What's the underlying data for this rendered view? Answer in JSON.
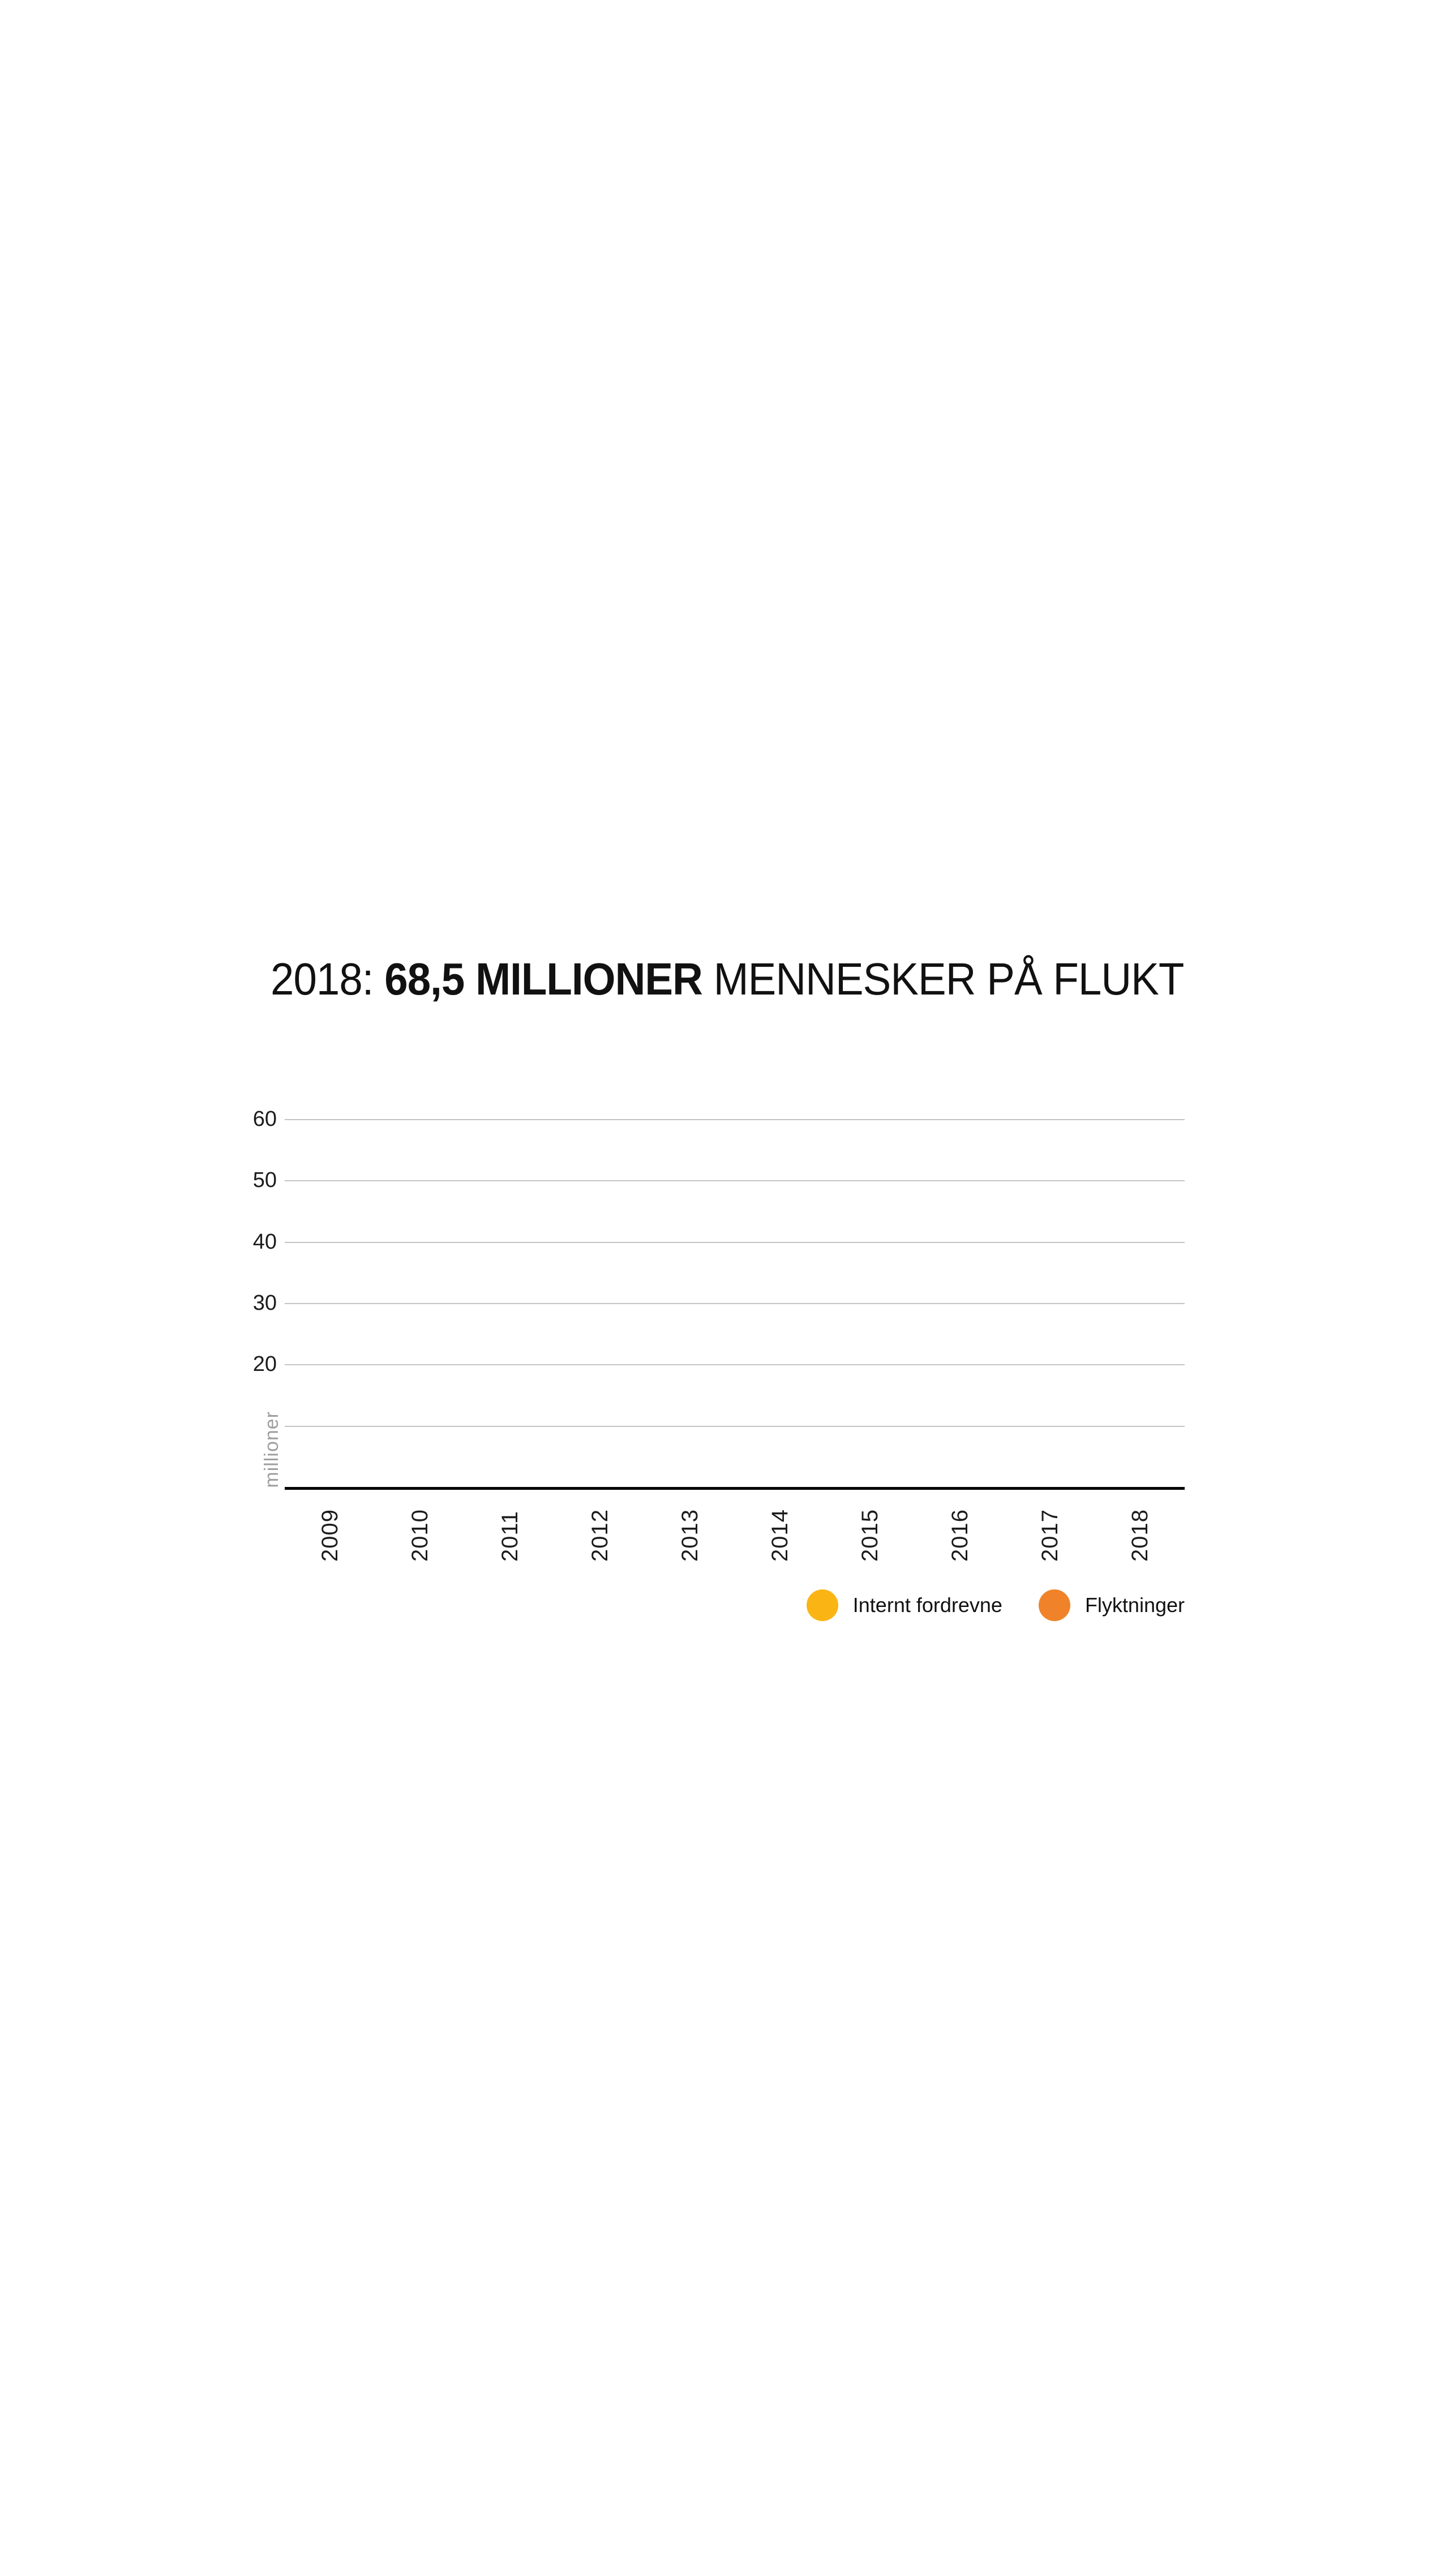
{
  "figure": {
    "title": {
      "prefix": "2018: ",
      "highlight": "68,5 MILLIONER",
      "suffix": " MENNESKER PÅ FLUKT"
    }
  },
  "chart_data": {
    "type": "bar",
    "title": "2018: 68,5 MILLIONER MENNESKER PÅ FLUKT",
    "categories": [
      "2009",
      "2010",
      "2011",
      "2012",
      "2013",
      "2014",
      "2015",
      "2016",
      "2017",
      "2018"
    ],
    "series": [
      {
        "name": "Internt fordrevne",
        "color": "#FAB515",
        "values": []
      },
      {
        "name": "Flyktninger",
        "color": "#F08329",
        "values": []
      }
    ],
    "bars_rendered": false,
    "ylabel": "millioner",
    "ytick_labels": [
      "60",
      "50",
      "40",
      "30",
      "20"
    ],
    "gridlines_at": [
      60,
      50,
      40,
      30,
      20,
      10
    ],
    "ylim": [
      0,
      65
    ],
    "grid": true,
    "legend_position": "bottom-right",
    "axis_color": "#000000",
    "gridline_color": "#c4c4c4",
    "ylabel_color": "#9e9e9e",
    "tick_label_rotation": -90
  }
}
